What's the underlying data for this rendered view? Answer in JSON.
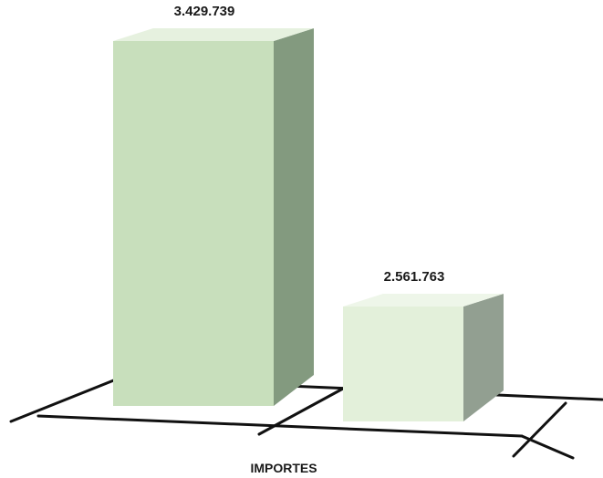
{
  "chart_data": {
    "type": "bar",
    "style": "3d-column",
    "xlabel": "IMPORTES",
    "series": [
      {
        "value": 3429739,
        "label": "3.429.739",
        "colors": {
          "front": "#c8dfbc",
          "side": "#839a7f",
          "top": "#e6f1df"
        }
      },
      {
        "value": 2561763,
        "label": "2.561.763",
        "colors": {
          "front": "#e3f0da",
          "side": "#929f91",
          "top": "#eef6e9"
        }
      }
    ],
    "floor_color": "#111111",
    "grid": false,
    "legend": "none"
  }
}
